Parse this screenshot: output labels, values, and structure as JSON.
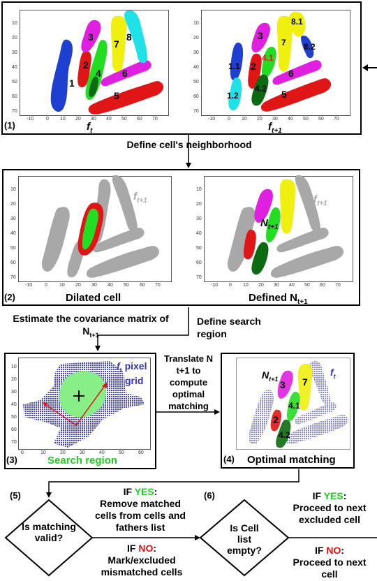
{
  "panel1": {
    "num": "(1)",
    "left_caption": "f",
    "left_caption_sub": "t",
    "right_caption": "f",
    "right_caption_sub": "t+1",
    "left_cells": [
      "1",
      "2",
      "3",
      "4",
      "5",
      "6",
      "7",
      "8"
    ],
    "right_cells": [
      "1.1",
      "1.2",
      "2",
      "3",
      "4.1",
      "4.2",
      "5",
      "6",
      "7",
      "8.1",
      "8.2"
    ],
    "y_ticks": [
      "10",
      "20",
      "30",
      "40",
      "50",
      "60",
      "70"
    ],
    "x_ticks": [
      "-10",
      "0",
      "10",
      "20",
      "30",
      "40",
      "50",
      "60",
      "70"
    ]
  },
  "step1_label": "Define cell's neighborhood",
  "panel2": {
    "num": "(2)",
    "left_caption": "Dilated cell",
    "right_caption": "Defined N",
    "right_caption_sub": "t+1",
    "left_tag": "f",
    "left_tag_sub": "t+1",
    "right_tag": "f",
    "right_tag_sub": "t+1",
    "n_label": "N",
    "n_sub": "t+1",
    "y_ticks": [
      "10",
      "20",
      "30",
      "40",
      "50",
      "60",
      "70"
    ],
    "x_ticks": [
      "-10",
      "0",
      "10",
      "20",
      "30",
      "40",
      "50",
      "60",
      "70"
    ]
  },
  "step2_label": "Estimate the covariance matrix of N",
  "step2_sub": "t+1",
  "step3_label": "Define search region",
  "panel3": {
    "num": "(3)",
    "caption": "Search region",
    "grid_label_a": "f",
    "grid_label_a_sub": "t",
    "grid_label_b": "pixel",
    "grid_label_c": "grid",
    "y_ticks": [
      "10",
      "20",
      "30",
      "40",
      "50",
      "60",
      "70"
    ],
    "x_ticks": [
      "0",
      "10",
      "20",
      "30",
      "40",
      "50",
      "60"
    ]
  },
  "step4_label": "Translate N t+1 to compute optimal matching",
  "panel4": {
    "num": "(4)",
    "caption": "Optimal matching",
    "n_label": "N",
    "n_sub": "t+1",
    "f_label": "f",
    "f_sub": "t",
    "cells": [
      "3",
      "7",
      "4.1",
      "2",
      "4.2"
    ]
  },
  "decision5": {
    "num": "(5)",
    "question": "Is matching valid?",
    "yes_prefix": "IF ",
    "yes_word": "YES",
    "yes_text": "Remove matched cells from cells and fathers list",
    "no_prefix": "IF ",
    "no_word": "NO",
    "no_text": "Mark/excluded mismatched cells"
  },
  "decision6": {
    "num": "(6)",
    "question": "Is Cell list empty?",
    "yes_prefix": "IF ",
    "yes_word": "YES",
    "yes_text": "Proceed to next excluded cell",
    "no_prefix": "IF ",
    "no_word": "NO",
    "no_text": "Proceed to next cell"
  },
  "colors": {
    "blue": "#1e3fd0",
    "red": "#e01515",
    "green": "#22dd22",
    "dark_green": "#0c6a10",
    "magenta": "#e020e0",
    "yellow": "#f0f010",
    "cyan": "#20e0e8",
    "grey": "#a8a8a8",
    "yes": "#22cc22",
    "no": "#dd1111",
    "grid_blue": "#4444cc",
    "search_green": "#88ee88"
  }
}
